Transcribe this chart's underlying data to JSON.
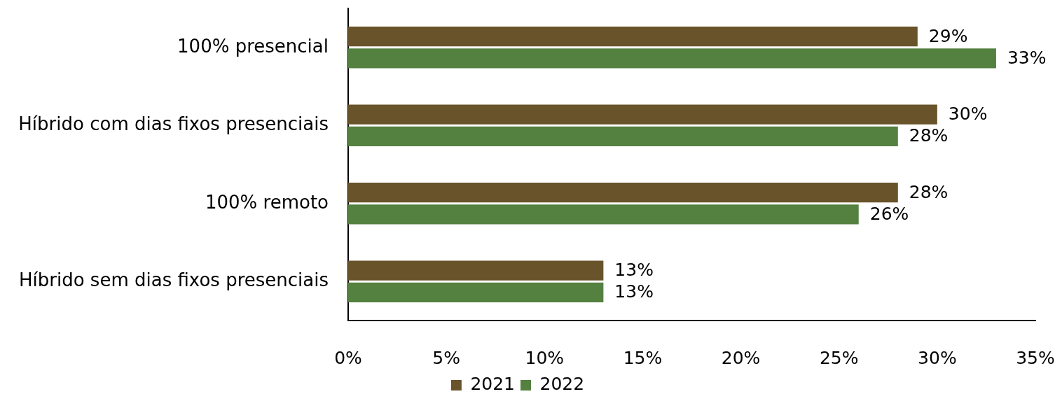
{
  "chart_data": {
    "type": "bar",
    "orientation": "horizontal",
    "categories": [
      "100% presencial",
      "Híbrido com dias fixos presenciais",
      "100% remoto",
      "Híbrido sem dias fixos presenciais"
    ],
    "series": [
      {
        "name": "2021",
        "color": "#68532a",
        "values": [
          29,
          30,
          28,
          13
        ],
        "value_labels": [
          "29%",
          "30%",
          "28%",
          "13%"
        ]
      },
      {
        "name": "2022",
        "color": "#548040",
        "values": [
          33,
          28,
          26,
          13
        ],
        "value_labels": [
          "33%",
          "28%",
          "26%",
          "13%"
        ]
      }
    ],
    "xlim": [
      0,
      35
    ],
    "xticks": [
      {
        "value": 0,
        "label": "0%"
      },
      {
        "value": 5,
        "label": "5%"
      },
      {
        "value": 10,
        "label": "10%"
      },
      {
        "value": 15,
        "label": "15%"
      },
      {
        "value": 20,
        "label": "20%"
      },
      {
        "value": 25,
        "label": "25%"
      },
      {
        "value": 30,
        "label": "30%"
      },
      {
        "value": 35,
        "label": "35%"
      }
    ],
    "legend": "bottom"
  }
}
